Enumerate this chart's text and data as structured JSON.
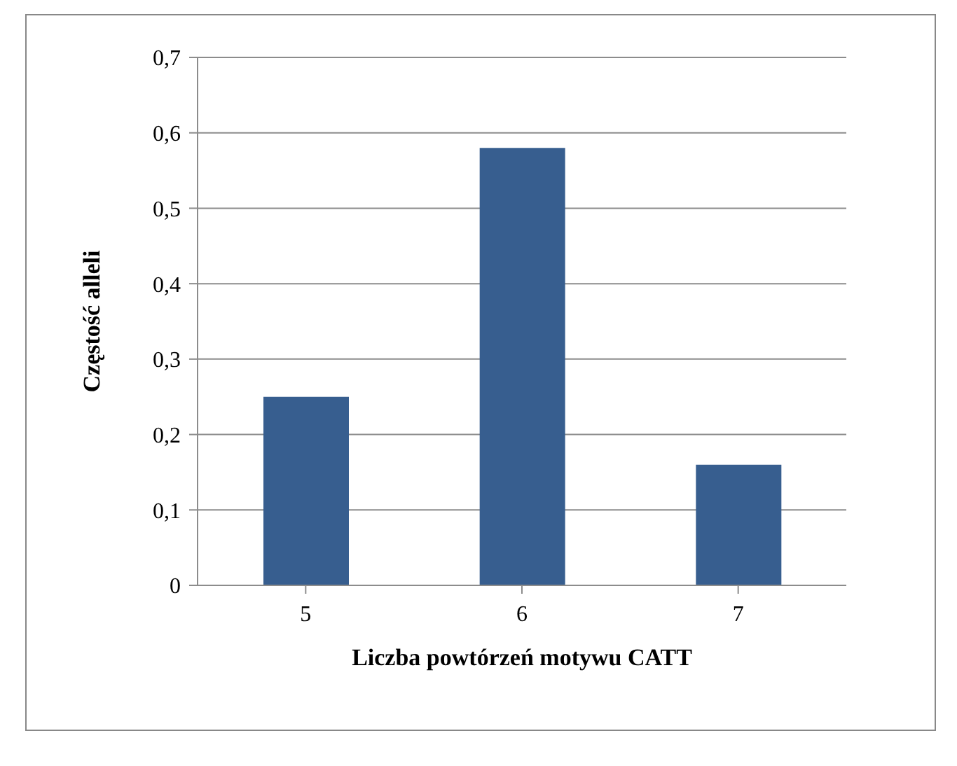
{
  "chart_data": {
    "type": "bar",
    "xlabel": "Liczba powtórzeń motywu CATT",
    "ylabel": "Częstość alleli",
    "categories": [
      "5",
      "6",
      "7"
    ],
    "values": [
      0.25,
      0.58,
      0.16
    ],
    "color": "#375e8f",
    "ylim": [
      0,
      0.7
    ],
    "yticks": [
      {
        "value": 0,
        "label": "0"
      },
      {
        "value": 0.1,
        "label": "0,1"
      },
      {
        "value": 0.2,
        "label": "0,2"
      },
      {
        "value": 0.3,
        "label": "0,3"
      },
      {
        "value": 0.4,
        "label": "0,4"
      },
      {
        "value": 0.5,
        "label": "0,5"
      },
      {
        "value": 0.6,
        "label": "0,6"
      },
      {
        "value": 0.7,
        "label": "0,7"
      }
    ],
    "grid": "y"
  }
}
